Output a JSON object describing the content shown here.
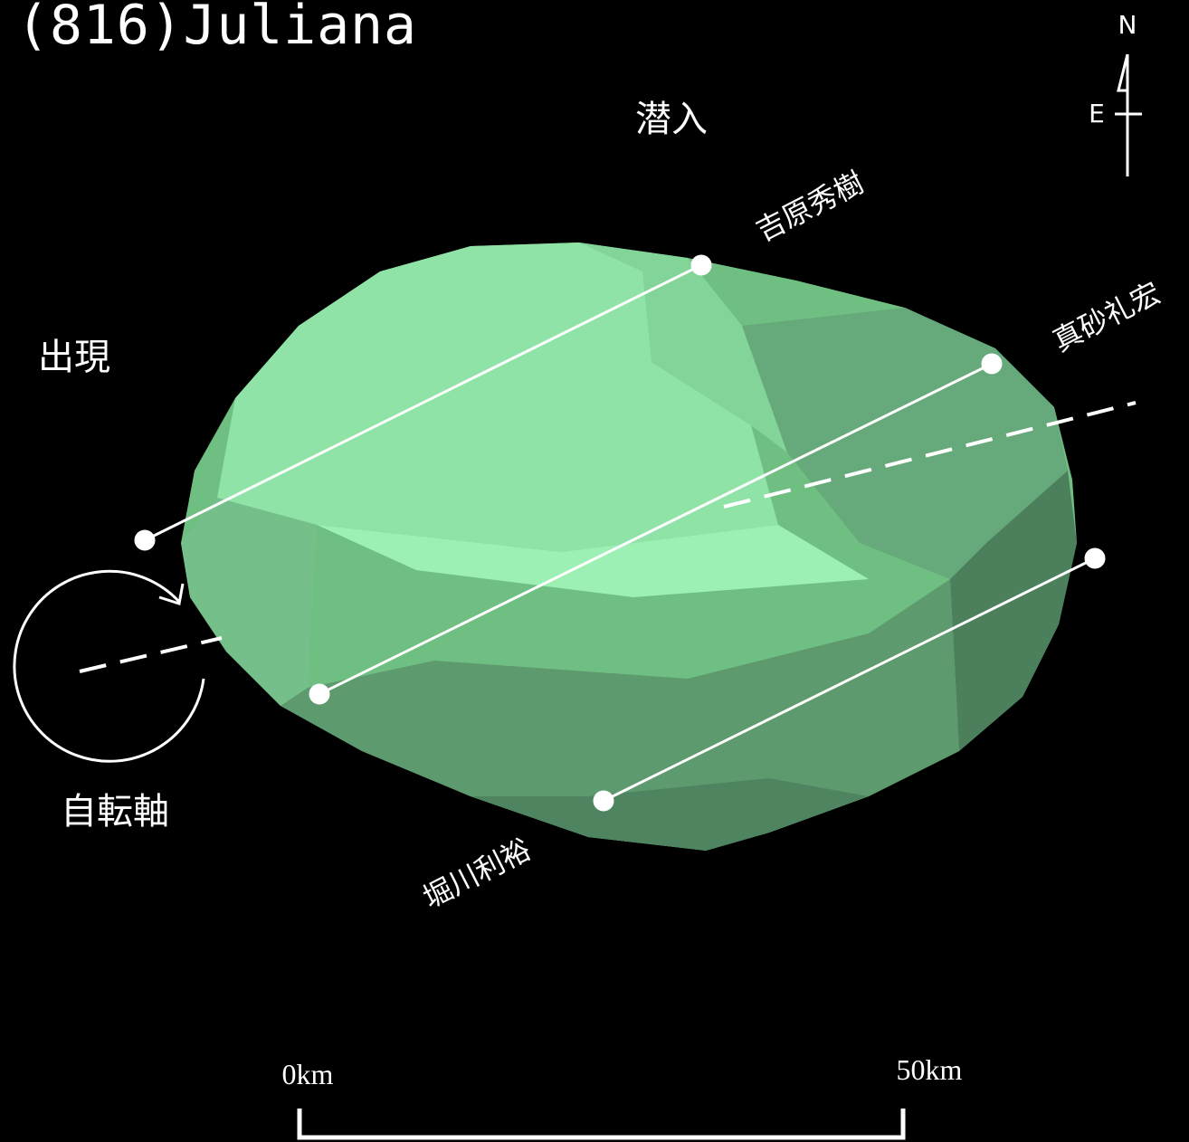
{
  "title": "(816)Juliana",
  "labels": {
    "disappearance": "潜入",
    "reappearance": "出現",
    "rotation_axis": "自転軸"
  },
  "observers": [
    "吉原秀樹",
    "真砂礼宏",
    "堀川利裕"
  ],
  "compass": {
    "north": "N",
    "east": "E"
  },
  "scale": {
    "start": "0km",
    "end": "50km"
  }
}
